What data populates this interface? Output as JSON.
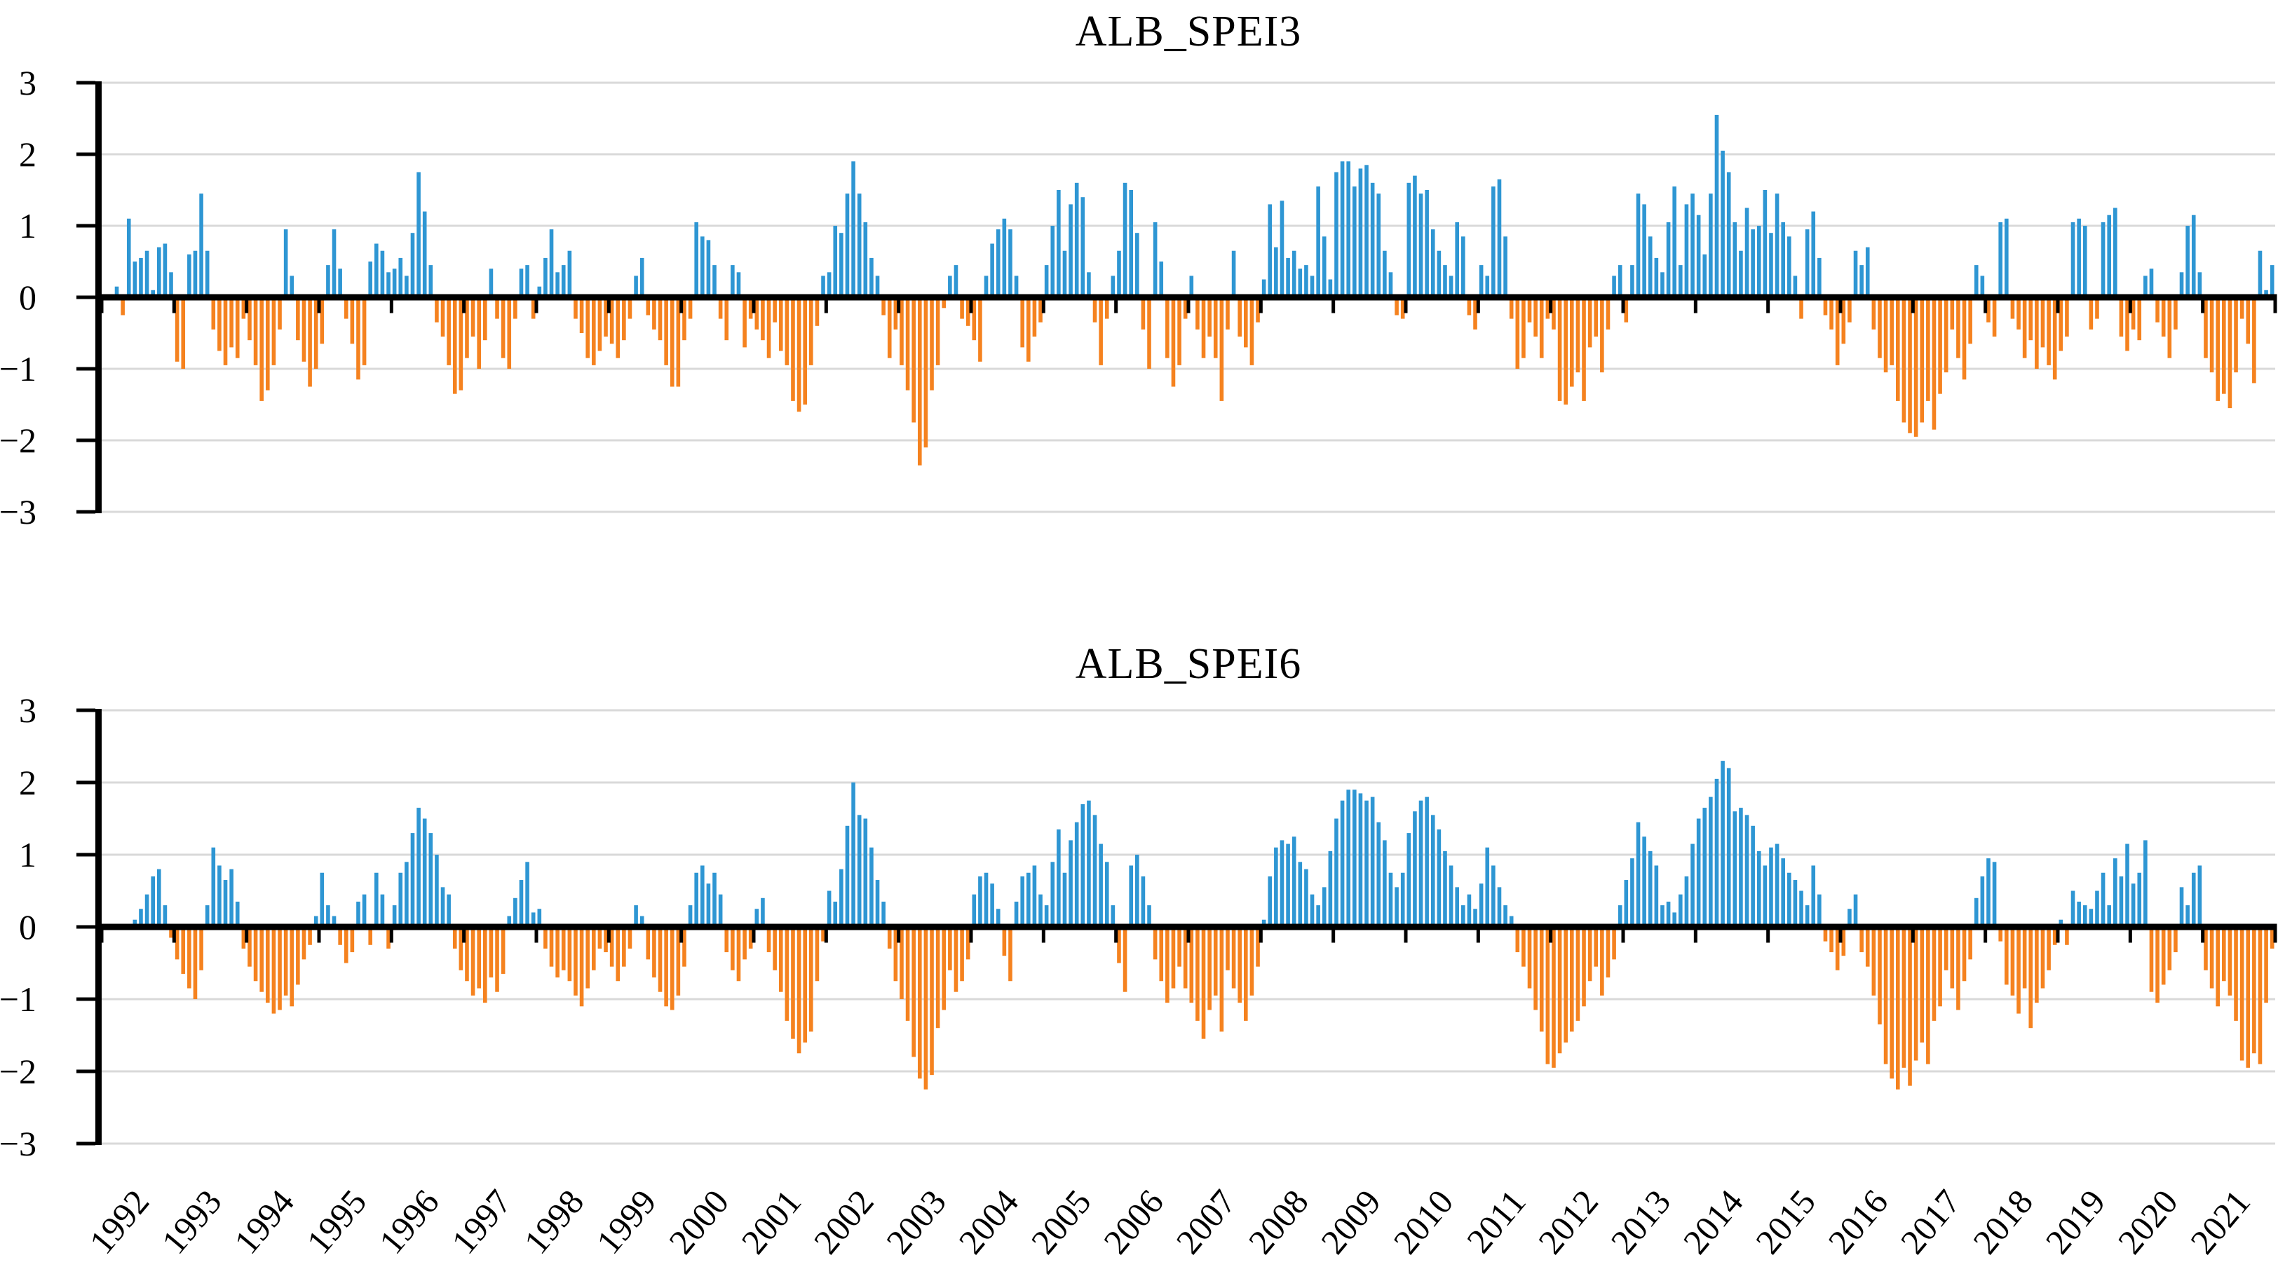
{
  "figure": {
    "background": "#ffffff",
    "grid_color": "#D9D9D9",
    "axis_color": "#000000",
    "tick_label_color": "#000000"
  },
  "chart_data": [
    {
      "type": "bar",
      "title": "ALB_SPEI3",
      "xlabel": "",
      "ylabel": "",
      "ylim": [
        -3,
        3
      ],
      "yticks": [
        3,
        2,
        1,
        0,
        -1,
        -2,
        -3
      ],
      "ytick_labels": [
        "3",
        "2",
        "1",
        "0",
        "−1",
        "−2",
        "−3"
      ],
      "x_start": "1992-01",
      "x_end": "2021-12",
      "xtick_labels": [
        "1992",
        "1993",
        "1994",
        "1995",
        "1996",
        "1997",
        "1998",
        "1999",
        "2000",
        "2001",
        "2002",
        "2003",
        "2004",
        "2005",
        "2006",
        "2007",
        "2008",
        "2009",
        "2010",
        "2011",
        "2012",
        "2013",
        "2014",
        "2015",
        "2016",
        "2017",
        "2018",
        "2019",
        "2020",
        "2021"
      ],
      "x_labels_visible": false,
      "grid": "horizontal",
      "legend": "none",
      "positive_color": "#2E96D3",
      "negative_color": "#F5821F",
      "values": [
        null,
        null,
        0.15,
        -0.25,
        1.1,
        0.5,
        0.55,
        0.65,
        0.1,
        0.7,
        0.75,
        0.35,
        -0.9,
        -1.0,
        0.6,
        0.65,
        1.45,
        0.65,
        -0.45,
        -0.75,
        -0.95,
        -0.7,
        -0.85,
        -0.3,
        -0.6,
        -0.95,
        -1.45,
        -1.3,
        -0.95,
        -0.45,
        0.95,
        0.3,
        -0.6,
        -0.9,
        -1.25,
        -1.0,
        -0.65,
        0.45,
        0.95,
        0.4,
        -0.3,
        -0.65,
        -1.15,
        -0.95,
        0.5,
        0.75,
        0.65,
        0.35,
        0.4,
        0.55,
        0.3,
        0.9,
        1.75,
        1.2,
        0.45,
        -0.35,
        -0.55,
        -0.95,
        -1.35,
        -1.3,
        -0.85,
        -0.55,
        -1.0,
        -0.6,
        0.4,
        -0.3,
        -0.85,
        -1.0,
        -0.3,
        0.4,
        0.45,
        -0.3,
        0.15,
        0.55,
        0.95,
        0.35,
        0.45,
        0.65,
        -0.3,
        -0.5,
        -0.85,
        -0.95,
        -0.75,
        -0.55,
        -0.65,
        -0.85,
        -0.6,
        -0.3,
        0.3,
        0.55,
        -0.25,
        -0.45,
        -0.6,
        -0.95,
        -1.25,
        -1.25,
        -0.6,
        -0.3,
        1.05,
        0.85,
        0.8,
        0.45,
        -0.3,
        -0.6,
        0.45,
        0.35,
        -0.7,
        -0.3,
        -0.45,
        -0.6,
        -0.85,
        -0.35,
        -0.75,
        -0.95,
        -1.45,
        -1.6,
        -1.5,
        -0.95,
        -0.4,
        0.3,
        0.35,
        1.0,
        0.9,
        1.45,
        1.9,
        1.45,
        1.05,
        0.55,
        0.3,
        -0.25,
        -0.85,
        -0.45,
        -0.95,
        -1.3,
        -1.75,
        -2.35,
        -2.1,
        -1.3,
        -0.95,
        -0.15,
        0.3,
        0.45,
        -0.3,
        -0.4,
        -0.6,
        -0.9,
        0.3,
        0.75,
        0.95,
        1.1,
        0.95,
        0.3,
        -0.7,
        -0.9,
        -0.55,
        -0.35,
        0.45,
        1.0,
        1.5,
        0.65,
        1.3,
        1.6,
        1.4,
        0.35,
        -0.35,
        -0.95,
        -0.3,
        0.3,
        0.65,
        1.6,
        1.5,
        0.9,
        -0.45,
        -1.0,
        1.05,
        0.5,
        -0.85,
        -1.25,
        -0.95,
        -0.3,
        0.3,
        -0.45,
        -0.85,
        -0.55,
        -0.85,
        -1.45,
        -0.45,
        0.65,
        -0.55,
        -0.7,
        -0.95,
        -0.35,
        0.25,
        1.3,
        0.7,
        1.35,
        0.55,
        0.65,
        0.4,
        0.45,
        0.3,
        1.55,
        0.85,
        0.25,
        1.75,
        1.9,
        1.9,
        1.55,
        1.8,
        1.85,
        1.6,
        1.45,
        0.65,
        0.35,
        -0.25,
        -0.3,
        1.6,
        1.7,
        1.45,
        1.5,
        0.95,
        0.65,
        0.45,
        0.3,
        1.05,
        0.85,
        -0.25,
        -0.45,
        0.45,
        0.3,
        1.55,
        1.65,
        0.85,
        -0.3,
        -1.0,
        -0.85,
        -0.35,
        -0.55,
        -0.85,
        -0.3,
        -0.45,
        -1.45,
        -1.5,
        -1.25,
        -1.05,
        -1.45,
        -0.7,
        -0.55,
        -1.05,
        -0.45,
        0.3,
        0.45,
        -0.35,
        0.45,
        1.45,
        1.3,
        0.85,
        0.55,
        0.35,
        1.05,
        1.55,
        0.45,
        1.3,
        1.45,
        1.15,
        0.6,
        1.45,
        2.55,
        2.05,
        1.75,
        1.05,
        0.65,
        1.25,
        0.95,
        1.0,
        1.5,
        0.9,
        1.45,
        1.05,
        0.85,
        0.3,
        -0.3,
        0.95,
        1.2,
        0.55,
        -0.25,
        -0.45,
        -0.95,
        -0.65,
        -0.35,
        0.65,
        0.45,
        0.7,
        -0.45,
        -0.85,
        -1.05,
        -0.95,
        -1.45,
        -1.75,
        -1.9,
        -1.95,
        -1.75,
        -1.45,
        -1.85,
        -1.35,
        -1.05,
        -0.45,
        -0.85,
        -1.15,
        -0.65,
        0.45,
        0.3,
        -0.35,
        -0.55,
        1.05,
        1.1,
        -0.3,
        -0.45,
        -0.85,
        -0.6,
        -1.0,
        -0.7,
        -0.95,
        -1.15,
        -0.75,
        -0.55,
        1.05,
        1.1,
        1.0,
        -0.45,
        -0.3,
        1.05,
        1.15,
        1.25,
        -0.55,
        -0.75,
        -0.45,
        -0.6,
        0.3,
        0.4,
        -0.35,
        -0.55,
        -0.85,
        -0.45,
        0.35,
        1.0,
        1.15,
        0.35,
        -0.85,
        -1.05,
        -1.45,
        -1.35,
        -1.55,
        -1.05,
        -0.3,
        -0.65,
        -1.2,
        0.65,
        0.1,
        0.45
      ]
    },
    {
      "type": "bar",
      "title": "ALB_SPEI6",
      "xlabel": "",
      "ylabel": "",
      "ylim": [
        -3,
        3
      ],
      "yticks": [
        3,
        2,
        1,
        0,
        -1,
        -2,
        -3
      ],
      "ytick_labels": [
        "3",
        "2",
        "1",
        "0",
        "−1",
        "−2",
        "−3"
      ],
      "x_start": "1992-01",
      "x_end": "2021-12",
      "xtick_labels": [
        "1992",
        "1993",
        "1994",
        "1995",
        "1996",
        "1997",
        "1998",
        "1999",
        "2000",
        "2001",
        "2002",
        "2003",
        "2004",
        "2005",
        "2006",
        "2007",
        "2008",
        "2009",
        "2010",
        "2011",
        "2012",
        "2013",
        "2014",
        "2015",
        "2016",
        "2017",
        "2018",
        "2019",
        "2020",
        "2021"
      ],
      "x_labels_visible": true,
      "grid": "horizontal",
      "legend": "none",
      "positive_color": "#2E96D3",
      "negative_color": "#F5821F",
      "values": [
        null,
        null,
        null,
        null,
        null,
        0.1,
        0.25,
        0.45,
        0.7,
        0.8,
        0.3,
        -0.15,
        -0.45,
        -0.65,
        -0.85,
        -1.0,
        -0.6,
        0.3,
        1.1,
        0.85,
        0.65,
        0.8,
        0.35,
        -0.3,
        -0.55,
        -0.75,
        -0.9,
        -1.05,
        -1.2,
        -1.15,
        -0.95,
        -1.1,
        -0.8,
        -0.45,
        -0.25,
        0.15,
        0.75,
        0.3,
        0.15,
        -0.25,
        -0.5,
        -0.35,
        0.35,
        0.45,
        -0.25,
        0.75,
        0.45,
        -0.3,
        0.3,
        0.75,
        0.9,
        1.3,
        1.65,
        1.5,
        1.3,
        1.0,
        0.55,
        0.45,
        -0.3,
        -0.6,
        -0.75,
        -0.95,
        -0.85,
        -1.05,
        -0.7,
        -0.9,
        -0.65,
        0.15,
        0.4,
        0.65,
        0.9,
        0.2,
        0.25,
        -0.3,
        -0.55,
        -0.7,
        -0.6,
        -0.75,
        -0.95,
        -1.1,
        -0.85,
        -0.6,
        -0.3,
        -0.35,
        -0.55,
        -0.75,
        -0.55,
        -0.3,
        0.3,
        0.15,
        -0.45,
        -0.7,
        -0.9,
        -1.1,
        -1.15,
        -0.95,
        -0.55,
        0.3,
        0.75,
        0.85,
        0.6,
        0.75,
        0.45,
        -0.35,
        -0.6,
        -0.75,
        -0.45,
        -0.3,
        0.25,
        0.4,
        -0.35,
        -0.6,
        -0.9,
        -1.3,
        -1.55,
        -1.75,
        -1.6,
        -1.45,
        -0.75,
        -0.2,
        0.5,
        0.35,
        0.8,
        1.4,
        2.0,
        1.55,
        1.5,
        1.1,
        0.65,
        0.35,
        -0.3,
        -0.75,
        -1.0,
        -1.3,
        -1.8,
        -2.1,
        -2.25,
        -2.05,
        -1.4,
        -1.15,
        -0.6,
        -0.9,
        -0.75,
        -0.45,
        0.45,
        0.7,
        0.75,
        0.6,
        0.25,
        -0.4,
        -0.75,
        0.35,
        0.7,
        0.75,
        0.85,
        0.45,
        0.3,
        0.9,
        1.35,
        0.75,
        1.2,
        1.45,
        1.7,
        1.75,
        1.55,
        1.15,
        0.9,
        0.3,
        -0.5,
        -0.9,
        0.85,
        1.0,
        0.7,
        0.3,
        -0.45,
        -0.75,
        -1.05,
        -0.85,
        -0.55,
        -0.85,
        -1.05,
        -1.3,
        -1.55,
        -1.15,
        -0.95,
        -1.45,
        -0.6,
        -0.85,
        -1.05,
        -1.3,
        -0.95,
        -0.55,
        0.1,
        0.7,
        1.1,
        1.2,
        1.15,
        1.25,
        0.9,
        0.8,
        0.45,
        0.3,
        0.55,
        1.05,
        1.5,
        1.75,
        1.9,
        1.9,
        1.85,
        1.75,
        1.8,
        1.45,
        1.2,
        0.75,
        0.55,
        0.75,
        1.3,
        1.6,
        1.75,
        1.8,
        1.55,
        1.35,
        1.05,
        0.85,
        0.55,
        0.3,
        0.45,
        0.25,
        0.6,
        1.1,
        0.85,
        0.55,
        0.3,
        0.15,
        -0.35,
        -0.55,
        -0.85,
        -1.15,
        -1.45,
        -1.9,
        -1.95,
        -1.75,
        -1.6,
        -1.45,
        -1.3,
        -1.1,
        -0.75,
        -0.55,
        -0.95,
        -0.7,
        -0.45,
        0.3,
        0.65,
        0.95,
        1.45,
        1.25,
        1.05,
        0.85,
        0.3,
        0.35,
        0.2,
        0.45,
        0.7,
        1.15,
        1.5,
        1.65,
        1.8,
        2.05,
        2.3,
        2.2,
        1.6,
        1.65,
        1.55,
        1.4,
        1.05,
        0.85,
        1.1,
        1.15,
        0.95,
        0.75,
        0.65,
        0.5,
        0.3,
        0.85,
        0.45,
        -0.2,
        -0.35,
        -0.6,
        -0.4,
        0.25,
        0.45,
        -0.35,
        -0.55,
        -0.95,
        -1.35,
        -1.9,
        -2.1,
        -2.25,
        -1.95,
        -2.2,
        -1.85,
        -1.6,
        -1.9,
        -1.3,
        -1.1,
        -0.6,
        -0.85,
        -1.15,
        -0.75,
        -0.45,
        0.4,
        0.7,
        0.95,
        0.9,
        -0.2,
        -0.8,
        -0.95,
        -1.2,
        -0.85,
        -1.4,
        -1.05,
        -0.85,
        -0.6,
        -0.25,
        0.1,
        -0.25,
        0.5,
        0.35,
        0.3,
        0.25,
        0.5,
        0.75,
        0.3,
        0.95,
        0.7,
        1.15,
        0.6,
        0.75,
        1.2,
        -0.9,
        -1.05,
        -0.8,
        -0.6,
        -0.35,
        0.55,
        0.3,
        0.75,
        0.85,
        -0.6,
        -0.85,
        -1.1,
        -0.75,
        -0.95,
        -1.3,
        -1.85,
        -1.95,
        -1.75,
        -1.9,
        -1.05,
        -0.3
      ]
    }
  ]
}
